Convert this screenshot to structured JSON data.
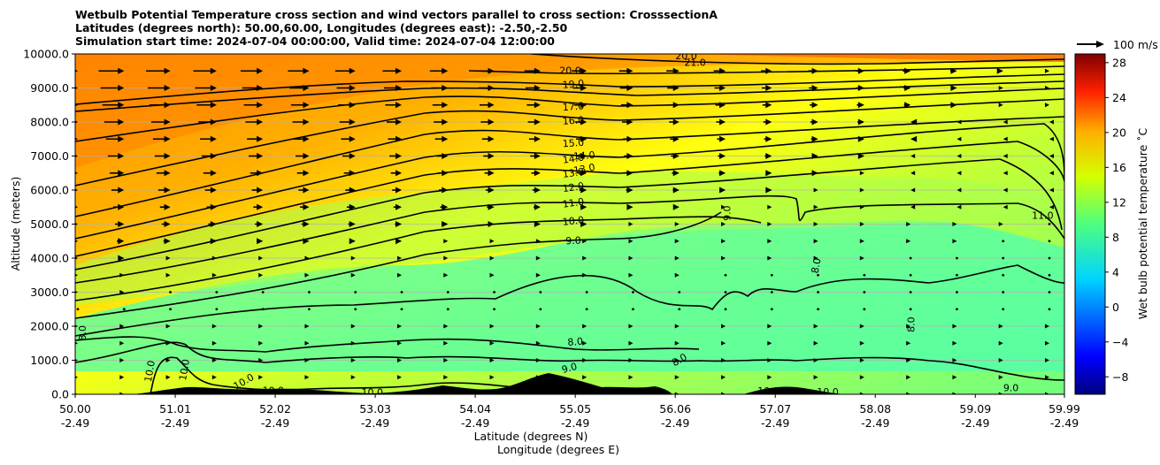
{
  "title": {
    "line1": "Wetbulb Potential Temperature cross section and wind vectors parallel to cross section: CrosssectionA",
    "line2": "Latitudes (degrees north): 50.00,60.00, Longitudes (degrees east): -2.50,-2.50",
    "line3": "Simulation start time: 2024-07-04 00:00:00, Valid time: 2024-07-04 12:00:00"
  },
  "chart_data": {
    "type": "contourf",
    "xlabel_line1": "Latitude (degrees N)",
    "xlabel_line2": "Longitude (degrees E)",
    "ylabel": "Altitude (meters)",
    "xlim": [
      50.0,
      59.99
    ],
    "ylim": [
      0,
      10000
    ],
    "x_ticks": [
      {
        "lat": "50.00",
        "lon": "-2.49",
        "v": 50.0
      },
      {
        "lat": "51.01",
        "lon": "-2.49",
        "v": 51.01
      },
      {
        "lat": "52.02",
        "lon": "-2.49",
        "v": 52.02
      },
      {
        "lat": "53.03",
        "lon": "-2.49",
        "v": 53.03
      },
      {
        "lat": "54.04",
        "lon": "-2.49",
        "v": 54.04
      },
      {
        "lat": "55.05",
        "lon": "-2.49",
        "v": 55.05
      },
      {
        "lat": "56.06",
        "lon": "-2.49",
        "v": 56.06
      },
      {
        "lat": "57.07",
        "lon": "-2.49",
        "v": 57.07
      },
      {
        "lat": "58.08",
        "lon": "-2.49",
        "v": 58.08
      },
      {
        "lat": "59.09",
        "lon": "-2.49",
        "v": 59.09
      },
      {
        "lat": "59.99",
        "lon": "-2.49",
        "v": 59.99
      }
    ],
    "y_ticks": [
      {
        "label": "10000.0",
        "v": 10000
      },
      {
        "label": "9000.0",
        "v": 9000
      },
      {
        "label": "8000.0",
        "v": 8000
      },
      {
        "label": "7000.0",
        "v": 7000
      },
      {
        "label": "6000.0",
        "v": 6000
      },
      {
        "label": "5000.0",
        "v": 5000
      },
      {
        "label": "4000.0",
        "v": 4000
      },
      {
        "label": "3000.0",
        "v": 3000
      },
      {
        "label": "2000.0",
        "v": 2000
      },
      {
        "label": "1000.0",
        "v": 1000
      },
      {
        "label": "0.0",
        "v": 0
      }
    ],
    "colorbar": {
      "label": "Wet bulb potential temperature ˚C",
      "range": [
        -10,
        29
      ],
      "ticks": [
        {
          "label": "28",
          "v": 28
        },
        {
          "label": "24",
          "v": 24
        },
        {
          "label": "20",
          "v": 20
        },
        {
          "label": "16",
          "v": 16
        },
        {
          "label": "12",
          "v": 12
        },
        {
          "label": "8",
          "v": 8
        },
        {
          "label": "4",
          "v": 4
        },
        {
          "label": "0",
          "v": 0
        },
        {
          "label": "−4",
          "v": -4
        },
        {
          "label": "−8",
          "v": -8
        }
      ]
    },
    "quiver_key": {
      "label": "100 m/s"
    },
    "contour_labels": [
      {
        "text": "21.0",
        "x": 56.26,
        "y": 9750,
        "rot": 0
      },
      {
        "text": "20.0",
        "x": 55.0,
        "y": 9520,
        "rot": 0
      },
      {
        "text": "19.0",
        "x": 55.03,
        "y": 9120,
        "rot": -5
      },
      {
        "text": "17.0",
        "x": 55.03,
        "y": 8460,
        "rot": -4
      },
      {
        "text": "16.0",
        "x": 55.03,
        "y": 8050,
        "rot": -4
      },
      {
        "text": "15.0",
        "x": 55.03,
        "y": 7390,
        "rot": -4
      },
      {
        "text": "14.0",
        "x": 55.03,
        "y": 6930,
        "rot": -8
      },
      {
        "text": "14.0",
        "x": 55.14,
        "y": 7020,
        "rot": -4
      },
      {
        "text": "13.0",
        "x": 55.03,
        "y": 6510,
        "rot": -8
      },
      {
        "text": "13.0",
        "x": 55.14,
        "y": 6630,
        "rot": -10
      },
      {
        "text": "12.0",
        "x": 55.03,
        "y": 6090,
        "rot": -8
      },
      {
        "text": "11.0",
        "x": 55.03,
        "y": 5630,
        "rot": -8
      },
      {
        "text": "10.0",
        "x": 55.03,
        "y": 5100,
        "rot": -6
      },
      {
        "text": "9.0",
        "x": 55.03,
        "y": 4520,
        "rot": -3
      },
      {
        "text": "9.0",
        "x": 56.58,
        "y": 5320,
        "rot": -90
      },
      {
        "text": "11.0",
        "x": 59.77,
        "y": 5260,
        "rot": 0
      },
      {
        "text": "8.0",
        "x": 57.48,
        "y": 3780,
        "rot": -80
      },
      {
        "text": "8.0",
        "x": 58.44,
        "y": 2050,
        "rot": -90
      },
      {
        "text": "8.0",
        "x": 50.07,
        "y": 1800,
        "rot": -90
      },
      {
        "text": "8.0",
        "x": 55.05,
        "y": 1550,
        "rot": -5
      },
      {
        "text": "8.0",
        "x": 56.1,
        "y": 1020,
        "rot": -30
      },
      {
        "text": "9.0",
        "x": 54.99,
        "y": 780,
        "rot": -15
      },
      {
        "text": "10.0",
        "x": 50.75,
        "y": 680,
        "rot": -80
      },
      {
        "text": "10.0",
        "x": 51.1,
        "y": 720,
        "rot": -80
      },
      {
        "text": "10.0",
        "x": 51.7,
        "y": 380,
        "rot": -30
      },
      {
        "text": "10.0",
        "x": 52.0,
        "y": 120,
        "rot": 0
      },
      {
        "text": "10.0",
        "x": 53.0,
        "y": 60,
        "rot": 0
      },
      {
        "text": "10.0",
        "x": 57.0,
        "y": 100,
        "rot": 0
      },
      {
        "text": "10.0",
        "x": 57.6,
        "y": 80,
        "rot": 0
      },
      {
        "text": "9.0",
        "x": 59.45,
        "y": 200,
        "rot": 0
      },
      {
        "text": "20.0",
        "x": 56.17,
        "y": 9950,
        "rot": 0
      }
    ]
  }
}
